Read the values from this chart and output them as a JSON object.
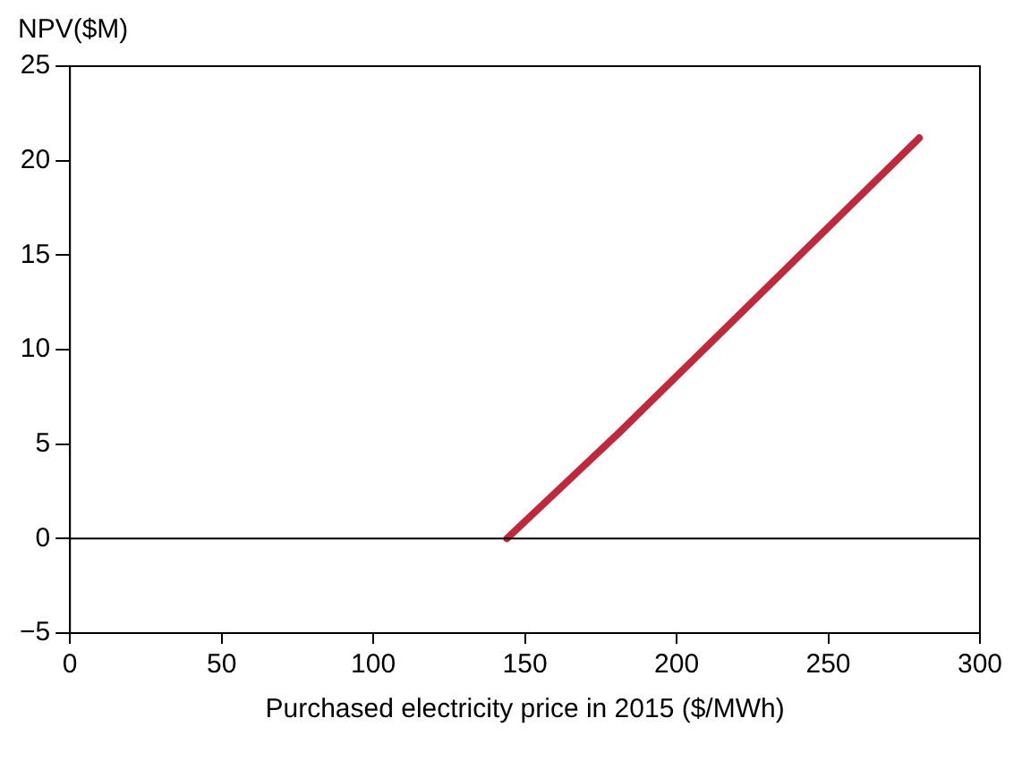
{
  "chart_data": {
    "type": "line",
    "ylabel": "NPV($M)",
    "xlabel": "Purchased electricity price in 2015 ($/MWh)",
    "series": [
      {
        "color": "#c0283c",
        "x": [
          144,
          181,
          280
        ],
        "values": [
          0,
          5.6,
          21.2
        ]
      }
    ],
    "xlim": [
      0,
      300
    ],
    "xticks": [
      0,
      50,
      100,
      150,
      200,
      250,
      300
    ],
    "ylim": [
      -5,
      25
    ],
    "yticks": [
      -5,
      0,
      5,
      10,
      15,
      20,
      25
    ],
    "ref_lines": [
      {
        "axis": "y",
        "value": 0,
        "color": "#000000"
      }
    ],
    "grid": false,
    "legend": false,
    "marker": "none",
    "line_style": "solid"
  }
}
